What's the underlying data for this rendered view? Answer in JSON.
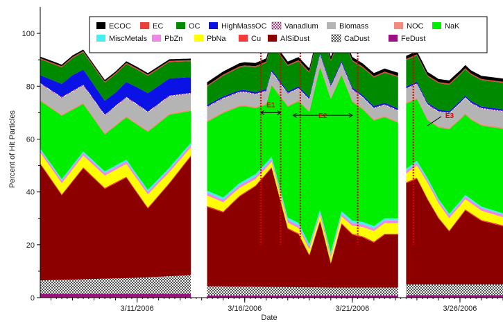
{
  "chart_data": {
    "type": "area",
    "stacked": true,
    "xlabel": "Date",
    "ylabel": "Percent of Hit Particles",
    "ylim": [
      0,
      110
    ],
    "xlim": [
      "2006-03-06T12:00",
      "2006-03-28T00:00"
    ],
    "y_ticks": [
      0,
      20,
      40,
      60,
      80,
      100
    ],
    "x_ticks": [
      {
        "date": "2006-03-11",
        "label": "3/11/2006"
      },
      {
        "date": "2006-03-16",
        "label": "3/16/2006"
      },
      {
        "date": "2006-03-21",
        "label": "3/21/2006"
      },
      {
        "date": "2006-03-26",
        "label": "3/26/2006"
      }
    ],
    "gaps": [
      {
        "from": "2006-03-13T12:00",
        "to": "2006-03-14T06:00"
      },
      {
        "from": "2006-03-23T04:00",
        "to": "2006-03-23T10:00"
      }
    ],
    "legend": {
      "placement": "top",
      "entries": [
        {
          "name": "ECOC",
          "color": "#000000"
        },
        {
          "name": "EC",
          "color": "#e8413a"
        },
        {
          "name": "OC",
          "color": "#008a00"
        },
        {
          "name": "HighMassOC",
          "color": "#0a12e6"
        },
        {
          "name": "Vanadium",
          "color": "#c8368c",
          "pattern": "checker"
        },
        {
          "name": "Biomass",
          "color": "#b4b4b4"
        },
        {
          "name": "NOC",
          "color": "#f28a80"
        },
        {
          "name": "NaK",
          "color": "#00ee00"
        },
        {
          "name": "MiscMetals",
          "color": "#45efef"
        },
        {
          "name": "PbZn",
          "color": "#ef85e5"
        },
        {
          "name": "PbNa",
          "color": "#ffff00"
        },
        {
          "name": "Cu",
          "color": "#f23a3a"
        },
        {
          "name": "AlSiDust",
          "color": "#8c0000"
        },
        {
          "name": "CaDust",
          "color": "#555555",
          "pattern": "checker"
        },
        {
          "name": "FeDust",
          "color": "#9c0f80"
        }
      ]
    },
    "stack_order": [
      "FeDust",
      "CaDust",
      "AlSiDust",
      "Cu",
      "PbNa",
      "PbZn",
      "MiscMetals",
      "NaK",
      "NOC",
      "Biomass",
      "Vanadium",
      "HighMassOC",
      "OC",
      "EC",
      "ECOC"
    ],
    "series_keypoints": {
      "FeDust": [
        [
          "2006-03-06T12:00",
          1.5
        ],
        [
          "2006-03-11T00:00",
          1.5
        ],
        [
          "2006-03-13T12:00",
          1.5
        ],
        [
          "2006-03-14T06:00",
          0.8
        ],
        [
          "2006-03-20T00:00",
          0.8
        ],
        [
          "2006-03-23T04:00",
          0.8
        ],
        [
          "2006-03-23T10:00",
          1
        ],
        [
          "2006-03-28T00:00",
          1
        ]
      ],
      "CaDust": [
        [
          "2006-03-06T12:00",
          5
        ],
        [
          "2006-03-11T00:00",
          6
        ],
        [
          "2006-03-13T12:00",
          7
        ],
        [
          "2006-03-14T06:00",
          3.5
        ],
        [
          "2006-03-20T00:00",
          3
        ],
        [
          "2006-03-23T04:00",
          3
        ],
        [
          "2006-03-23T10:00",
          4
        ],
        [
          "2006-03-28T00:00",
          4
        ]
      ],
      "AlSiDust": [
        [
          "2006-03-06T12:00",
          44
        ],
        [
          "2006-03-07T12:00",
          32
        ],
        [
          "2006-03-08T12:00",
          42
        ],
        [
          "2006-03-09T12:00",
          34
        ],
        [
          "2006-03-10T12:00",
          38
        ],
        [
          "2006-03-11T12:00",
          26
        ],
        [
          "2006-03-12T12:00",
          35
        ],
        [
          "2006-03-13T12:00",
          45
        ],
        [
          "2006-03-14T06:00",
          30
        ],
        [
          "2006-03-15T00:00",
          28
        ],
        [
          "2006-03-15T18:00",
          34
        ],
        [
          "2006-03-16T12:00",
          38
        ],
        [
          "2006-03-17T06:00",
          45
        ],
        [
          "2006-03-18T00:00",
          22
        ],
        [
          "2006-03-18T12:00",
          20
        ],
        [
          "2006-03-19T00:00",
          12
        ],
        [
          "2006-03-19T12:00",
          25
        ],
        [
          "2006-03-20T00:00",
          9
        ],
        [
          "2006-03-20T12:00",
          24
        ],
        [
          "2006-03-21T00:00",
          20
        ],
        [
          "2006-03-21T12:00",
          19
        ],
        [
          "2006-03-22T00:00",
          17
        ],
        [
          "2006-03-22T12:00",
          20
        ],
        [
          "2006-03-23T04:00",
          20
        ],
        [
          "2006-03-23T10:00",
          38
        ],
        [
          "2006-03-24T00:00",
          40
        ],
        [
          "2006-03-24T12:00",
          32
        ],
        [
          "2006-03-25T00:00",
          25
        ],
        [
          "2006-03-25T12:00",
          20
        ],
        [
          "2006-03-26T06:00",
          28
        ],
        [
          "2006-03-27T00:00",
          24
        ],
        [
          "2006-03-28T00:00",
          22
        ]
      ],
      "Cu": [
        [
          "2006-03-06T12:00",
          0.4
        ],
        [
          "2006-03-28T00:00",
          0.4
        ]
      ],
      "PbNa": [
        [
          "2006-03-06T12:00",
          4
        ],
        [
          "2006-03-11T12:00",
          5
        ],
        [
          "2006-03-13T12:00",
          3
        ],
        [
          "2006-03-14T06:00",
          4
        ],
        [
          "2006-03-17T00:00",
          2
        ],
        [
          "2006-03-20T00:00",
          2
        ],
        [
          "2006-03-22T00:00",
          4
        ],
        [
          "2006-03-23T04:00",
          4
        ],
        [
          "2006-03-23T10:00",
          3
        ],
        [
          "2006-03-24T12:00",
          6
        ],
        [
          "2006-03-26T00:00",
          4
        ],
        [
          "2006-03-28T00:00",
          3
        ]
      ],
      "PbZn": [
        [
          "2006-03-06T12:00",
          1
        ],
        [
          "2006-03-28T00:00",
          1
        ]
      ],
      "MiscMetals": [
        [
          "2006-03-06T12:00",
          0.5
        ],
        [
          "2006-03-20T00:00",
          1
        ],
        [
          "2006-03-28T00:00",
          0.5
        ]
      ],
      "NaK": [
        [
          "2006-03-06T12:00",
          18
        ],
        [
          "2006-03-07T12:00",
          24
        ],
        [
          "2006-03-08T12:00",
          18
        ],
        [
          "2006-03-09T12:00",
          14
        ],
        [
          "2006-03-10T12:00",
          16
        ],
        [
          "2006-03-11T12:00",
          22
        ],
        [
          "2006-03-12T12:00",
          20
        ],
        [
          "2006-03-13T12:00",
          12
        ],
        [
          "2006-03-14T06:00",
          26
        ],
        [
          "2006-03-15T00:00",
          32
        ],
        [
          "2006-03-16T00:00",
          28
        ],
        [
          "2006-03-17T00:00",
          22
        ],
        [
          "2006-03-18T00:00",
          42
        ],
        [
          "2006-03-19T00:00",
          50
        ],
        [
          "2006-03-20T00:00",
          58
        ],
        [
          "2006-03-21T00:00",
          45
        ],
        [
          "2006-03-22T00:00",
          40
        ],
        [
          "2006-03-23T04:00",
          36
        ],
        [
          "2006-03-23T10:00",
          25
        ],
        [
          "2006-03-24T12:00",
          22
        ],
        [
          "2006-03-25T12:00",
          32
        ],
        [
          "2006-03-26T12:00",
          30
        ],
        [
          "2006-03-28T00:00",
          32
        ]
      ],
      "NOC": [
        [
          "2006-03-06T12:00",
          0.5
        ],
        [
          "2006-03-28T00:00",
          0.5
        ]
      ],
      "Biomass": [
        [
          "2006-03-06T12:00",
          6
        ],
        [
          "2006-03-11T00:00",
          7
        ],
        [
          "2006-03-13T12:00",
          6
        ],
        [
          "2006-03-14T06:00",
          5
        ],
        [
          "2006-03-20T00:00",
          4
        ],
        [
          "2006-03-23T04:00",
          4
        ],
        [
          "2006-03-23T10:00",
          5
        ],
        [
          "2006-03-28T00:00",
          6
        ]
      ],
      "Vanadium": [
        [
          "2006-03-06T12:00",
          0.3
        ],
        [
          "2006-03-28T00:00",
          0.3
        ]
      ],
      "HighMassOC": [
        [
          "2006-03-06T12:00",
          3
        ],
        [
          "2006-03-08T00:00",
          6
        ],
        [
          "2006-03-10T00:00",
          5
        ],
        [
          "2006-03-11T12:00",
          7
        ],
        [
          "2006-03-13T12:00",
          6
        ],
        [
          "2006-03-14T06:00",
          0.6
        ],
        [
          "2006-03-28T00:00",
          0.6
        ]
      ],
      "OC": [
        [
          "2006-03-06T12:00",
          6
        ],
        [
          "2006-03-10T00:00",
          7
        ],
        [
          "2006-03-13T12:00",
          6
        ],
        [
          "2006-03-14T06:00",
          7
        ],
        [
          "2006-03-17T00:00",
          10
        ],
        [
          "2006-03-20T00:00",
          9
        ],
        [
          "2006-03-23T04:00",
          12
        ],
        [
          "2006-03-23T10:00",
          10
        ],
        [
          "2006-03-28T00:00",
          10
        ]
      ],
      "EC": [
        [
          "2006-03-06T12:00",
          0.4
        ],
        [
          "2006-03-28T00:00",
          0.4
        ]
      ],
      "ECOC": [
        [
          "2006-03-06T12:00",
          0.6
        ],
        [
          "2006-03-13T12:00",
          0.6
        ],
        [
          "2006-03-14T06:00",
          1.2
        ],
        [
          "2006-03-28T00:00",
          1.2
        ]
      ]
    },
    "annotations": [
      {
        "label": "E1",
        "from": "2006-03-16T18:00",
        "to": "2006-03-17T16:00",
        "y": 70,
        "label_y": 72
      },
      {
        "label": "E2",
        "from": "2006-03-18T06:00",
        "to": "2006-03-21T00:00",
        "y": 69,
        "label_y": 68
      },
      {
        "label": "E3",
        "at": "2006-03-24T10:00",
        "y": 65,
        "label_y": 68
      }
    ],
    "event_lines": [
      "2006-03-16T18:00",
      "2006-03-17T16:00",
      "2006-03-18T14:00",
      "2006-03-21T06:00",
      "2006-03-23T20:00"
    ]
  }
}
